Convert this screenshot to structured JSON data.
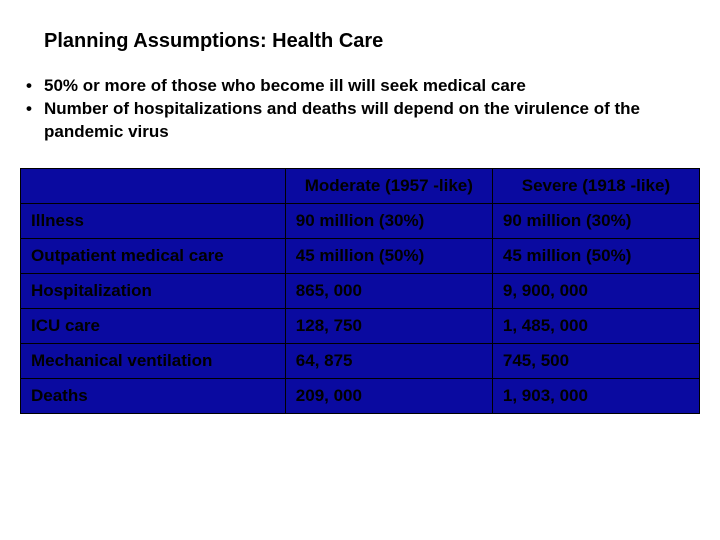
{
  "title": "Planning Assumptions: Health Care",
  "bullets": [
    "50% or more of those who become ill will seek medical care",
    "Number of hospitalizations and deaths will depend on the virulence of the pandemic virus"
  ],
  "table": {
    "type": "table",
    "background_color": "#0a0aa0",
    "border_color": "#000000",
    "text_color": "#000000",
    "font_size_pt": 13,
    "font_weight": "bold",
    "col_widths_pct": [
      39,
      30.5,
      30.5
    ],
    "columns": [
      "",
      "Moderate (1957 -like)",
      "Severe (1918 -like)"
    ],
    "rows": [
      [
        "Illness",
        "90 million (30%)",
        "90 million (30%)"
      ],
      [
        "Outpatient medical care",
        "45 million (50%)",
        "45 million (50%)"
      ],
      [
        "Hospitalization",
        "865, 000",
        "9, 900, 000"
      ],
      [
        "ICU care",
        "128, 750",
        "1, 485, 000"
      ],
      [
        "Mechanical ventilation",
        "64, 875",
        "745, 500"
      ],
      [
        "Deaths",
        "209, 000",
        "1, 903, 000"
      ]
    ]
  }
}
